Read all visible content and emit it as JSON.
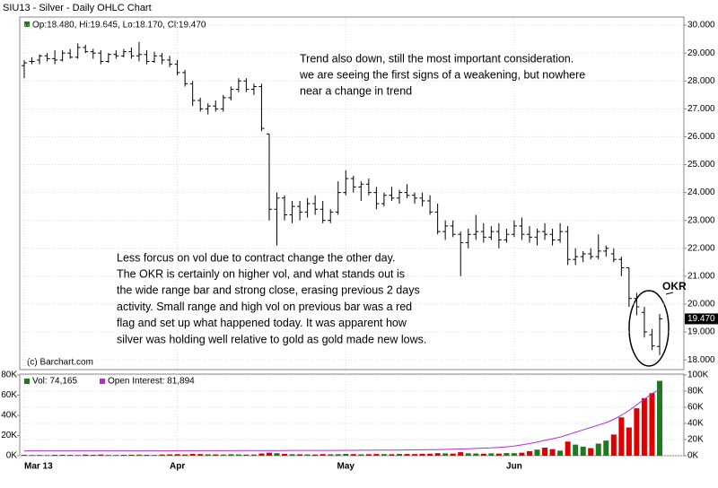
{
  "chart_data": {
    "type": "ohlc",
    "title": "SIU13 - Silver - Daily OHLC Chart",
    "info": "Op:18.480, Hi:19.645, Lo:18.170, Cl:19.470",
    "last_price_label": "19.470",
    "copyright": "(c) Barchart.com",
    "categories": [
      "Mar 13",
      null,
      null,
      null,
      null,
      null,
      null,
      null,
      null,
      null,
      null,
      null,
      null,
      null,
      null,
      null,
      null,
      null,
      null,
      null,
      "Apr",
      null,
      null,
      null,
      null,
      null,
      null,
      null,
      null,
      null,
      null,
      null,
      null,
      null,
      null,
      null,
      null,
      null,
      null,
      null,
      null,
      null,
      "May",
      null,
      null,
      null,
      null,
      null,
      null,
      null,
      null,
      null,
      null,
      null,
      null,
      null,
      null,
      null,
      null,
      null,
      null,
      null,
      null,
      null,
      "Jun",
      null,
      null,
      null,
      null,
      null,
      null,
      null,
      null,
      null,
      null,
      null,
      null,
      null,
      null,
      null,
      null,
      null,
      null,
      null
    ],
    "open": [
      28.55,
      28.7,
      28.75,
      28.9,
      28.8,
      28.75,
      29.0,
      28.85,
      29.2,
      29.05,
      29.0,
      28.7,
      28.95,
      28.9,
      29.05,
      28.9,
      28.95,
      28.7,
      28.9,
      28.75,
      28.6,
      28.3,
      27.9,
      27.3,
      27.0,
      27.1,
      27.0,
      27.4,
      27.7,
      28.0,
      27.7,
      27.8,
      26.1,
      23.4,
      23.8,
      23.2,
      23.5,
      23.3,
      23.6,
      23.4,
      23.0,
      23.3,
      24.0,
      24.5,
      24.2,
      24.3,
      24.0,
      23.6,
      23.9,
      23.8,
      24.0,
      23.9,
      23.8,
      23.7,
      23.3,
      22.6,
      22.8,
      22.5,
      22.2,
      22.5,
      22.6,
      22.4,
      22.6,
      22.3,
      22.5,
      22.8,
      22.5,
      22.4,
      22.6,
      22.5,
      22.3,
      22.6,
      21.6,
      21.7,
      21.8,
      21.7,
      21.9,
      21.8,
      21.6,
      21.3,
      20.2,
      19.7,
      18.9,
      18.48
    ],
    "high": [
      28.75,
      28.85,
      28.95,
      29.0,
      29.1,
      29.1,
      29.15,
      29.35,
      29.3,
      29.15,
      29.1,
      29.0,
      29.1,
      29.15,
      29.2,
      29.4,
      29.1,
      29.05,
      29.0,
      28.9,
      28.75,
      28.4,
      28.0,
      27.4,
      27.2,
      27.3,
      27.5,
      27.8,
      28.1,
      28.1,
      27.9,
      27.9,
      26.1,
      24.0,
      23.9,
      23.7,
      23.7,
      23.8,
      23.9,
      23.7,
      23.4,
      24.4,
      24.8,
      24.6,
      24.4,
      24.5,
      24.2,
      24.0,
      24.2,
      24.1,
      24.3,
      24.0,
      24.0,
      23.9,
      23.6,
      23.0,
      23.0,
      22.6,
      22.7,
      23.2,
      22.9,
      22.8,
      22.9,
      22.7,
      23.0,
      23.1,
      22.8,
      22.7,
      22.9,
      22.7,
      22.9,
      22.8,
      22.0,
      21.9,
      22.0,
      22.5,
      22.1,
      22.0,
      21.7,
      21.3,
      20.4,
      19.9,
      19.1,
      19.645
    ],
    "low": [
      28.1,
      28.6,
      28.6,
      28.7,
      28.6,
      28.7,
      28.8,
      28.8,
      29.0,
      28.8,
      28.6,
      28.65,
      28.8,
      28.85,
      28.8,
      28.7,
      28.6,
      28.65,
      28.6,
      28.5,
      28.2,
      27.8,
      27.1,
      26.9,
      26.8,
      26.9,
      26.9,
      27.3,
      27.6,
      27.6,
      27.5,
      26.2,
      23.0,
      22.1,
      23.0,
      22.9,
      23.0,
      23.1,
      23.2,
      22.9,
      22.9,
      23.2,
      23.9,
      24.0,
      23.7,
      23.9,
      23.4,
      23.5,
      23.7,
      23.6,
      23.8,
      23.6,
      23.5,
      23.2,
      22.5,
      22.3,
      22.4,
      21.0,
      22.0,
      22.3,
      22.2,
      22.3,
      22.0,
      22.2,
      22.4,
      22.3,
      22.2,
      22.1,
      22.3,
      22.1,
      22.2,
      21.4,
      21.4,
      21.5,
      21.6,
      21.6,
      21.7,
      21.5,
      21.0,
      19.9,
      19.6,
      18.8,
      18.35,
      18.17
    ],
    "close": [
      28.65,
      28.7,
      28.9,
      28.8,
      28.75,
      29.0,
      28.85,
      29.2,
      29.05,
      29.0,
      28.7,
      28.95,
      28.9,
      29.05,
      28.9,
      28.95,
      28.7,
      28.9,
      28.75,
      28.6,
      28.3,
      27.9,
      27.3,
      27.0,
      27.1,
      27.0,
      27.4,
      27.7,
      28.0,
      27.7,
      27.8,
      26.3,
      23.4,
      23.8,
      23.2,
      23.5,
      23.3,
      23.6,
      23.4,
      23.0,
      23.3,
      24.0,
      24.5,
      24.2,
      24.3,
      24.0,
      23.6,
      23.9,
      23.8,
      24.0,
      23.9,
      23.8,
      23.7,
      23.3,
      22.6,
      22.8,
      22.5,
      22.2,
      22.5,
      22.6,
      22.4,
      22.6,
      22.3,
      22.5,
      22.8,
      22.5,
      22.4,
      22.6,
      22.5,
      22.3,
      22.6,
      21.6,
      21.7,
      21.8,
      21.7,
      21.9,
      22.0,
      21.6,
      21.3,
      20.2,
      19.9,
      19.0,
      18.5,
      19.47
    ],
    "color": "#000000",
    "up_color": "#1e7a1e",
    "down_color": "#e00000",
    "oi_color": "#b030d0",
    "ylim": [
      17.65,
      30.26
    ],
    "yticks": [
      {
        "value": 18,
        "label": "18.000"
      },
      {
        "value": 19,
        "label": "19.000"
      },
      {
        "value": 20,
        "label": "20.000"
      },
      {
        "value": 21,
        "label": "21.000"
      },
      {
        "value": 22,
        "label": "22.000"
      },
      {
        "value": 23,
        "label": "23.000"
      },
      {
        "value": 24,
        "label": "24.000"
      },
      {
        "value": 25,
        "label": "25.000"
      },
      {
        "value": 26,
        "label": "26.000"
      },
      {
        "value": 27,
        "label": "27.000"
      },
      {
        "value": 28,
        "label": "28.000"
      },
      {
        "value": 29,
        "label": "29.000"
      },
      {
        "value": 30,
        "label": "30.000"
      }
    ],
    "grid": true,
    "volume": {
      "name": "Vol: 74,165",
      "values": [
        900,
        700,
        800,
        600,
        900,
        1000,
        800,
        700,
        1100,
        900,
        1200,
        800,
        700,
        900,
        1000,
        1100,
        900,
        800,
        1200,
        1300,
        1500,
        1200,
        1800,
        1600,
        1400,
        1300,
        1200,
        1500,
        1300,
        1100,
        1200,
        2200,
        3000,
        2500,
        1800,
        1500,
        1400,
        1300,
        1200,
        1600,
        1400,
        1500,
        1800,
        1600,
        1400,
        1500,
        1700,
        1600,
        1500,
        1800,
        1700,
        1600,
        1900,
        2000,
        2500,
        2300,
        2100,
        3500,
        2400,
        2200,
        2000,
        2300,
        2100,
        2600,
        2500,
        3000,
        4500,
        6000,
        8000,
        6500,
        5000,
        14000,
        11000,
        9000,
        7500,
        12000,
        15000,
        21000,
        38000,
        28000,
        47000,
        57000,
        62000,
        74165
      ],
      "ylim": [
        0,
        80000
      ],
      "yticks": [
        {
          "value": 0,
          "label": "0K"
        },
        {
          "value": 20000,
          "label": "20K"
        },
        {
          "value": 40000,
          "label": "40K"
        },
        {
          "value": 60000,
          "label": "60K"
        },
        {
          "value": 80000,
          "label": "80K"
        }
      ]
    },
    "open_interest": {
      "name": "Open Interest: 81,894",
      "values": [
        6000,
        6000,
        6000,
        6000,
        6000,
        6000,
        6000,
        6000,
        6000,
        6000,
        6000,
        6000,
        6000,
        6000,
        6000,
        6000,
        6000,
        6000,
        6000,
        6000,
        6200,
        6200,
        6200,
        6200,
        6200,
        6200,
        6200,
        6200,
        6300,
        6300,
        6300,
        6300,
        6400,
        6400,
        6400,
        6500,
        6500,
        6500,
        6500,
        6600,
        6600,
        6600,
        6700,
        6700,
        6800,
        6800,
        6900,
        6900,
        7000,
        7000,
        7100,
        7200,
        7300,
        7400,
        7600,
        7800,
        8000,
        8300,
        8600,
        9000,
        9400,
        9800,
        10300,
        11000,
        12000,
        13500,
        15000,
        17000,
        19000,
        21000,
        23000,
        26000,
        29000,
        32000,
        35000,
        38000,
        41000,
        45000,
        50000,
        56000,
        63000,
        70000,
        77000,
        81894
      ],
      "y2lim": [
        0,
        100000
      ],
      "y2ticks": [
        {
          "value": 0,
          "label": "0K"
        },
        {
          "value": 20000,
          "label": "20K"
        },
        {
          "value": 40000,
          "label": "40K"
        },
        {
          "value": 60000,
          "label": "60K"
        },
        {
          "value": 80000,
          "label": "80K"
        },
        {
          "value": 100000,
          "label": "100K"
        }
      ]
    },
    "annotations": [
      {
        "lines": [
          "Trend also down, still the most important consideration.",
          "we are seeing the first signs of a weakening, but nowhere",
          "near a change in trend"
        ]
      },
      {
        "lines": [
          "Less forcus on vol due to contract change the other day.",
          "The OKR is certainly on higher vol, and what stands out is",
          "the wide range bar and strong close, erasing previous 2 days",
          "activity.  Small range and high vol on previous bar was a red",
          "flag and set up what happened today.  It was apparent how",
          "silver was holding well relative to gold as gold made new lows."
        ]
      },
      {
        "lines": [
          "OKR"
        ]
      }
    ]
  }
}
